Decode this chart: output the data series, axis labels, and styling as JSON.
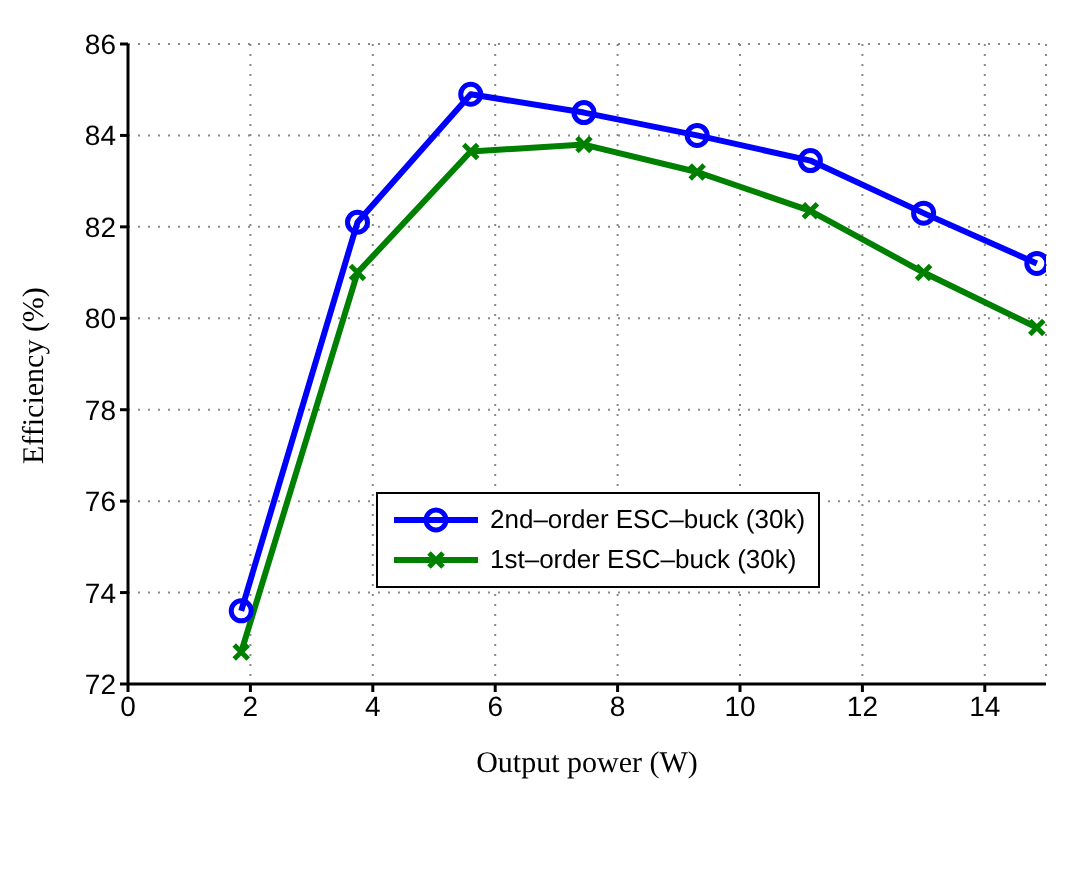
{
  "chart_data": {
    "type": "line",
    "xlabel": "Output power (W)",
    "ylabel": "Efficiency (%)",
    "x": [
      1.85,
      3.75,
      5.6,
      7.45,
      9.3,
      11.15,
      13.0,
      14.85
    ],
    "series": [
      {
        "name": "2nd–order ESC–buck (30k)",
        "color": "#0000ff",
        "marker": "circle",
        "values": [
          73.6,
          82.1,
          84.9,
          84.5,
          84.0,
          83.45,
          82.3,
          81.2
        ]
      },
      {
        "name": "1st–order ESC–buck (30k)",
        "color": "#008000",
        "marker": "cross",
        "values": [
          72.7,
          81.0,
          83.65,
          83.8,
          83.2,
          82.35,
          81.0,
          79.8
        ]
      }
    ],
    "xlim": [
      0,
      15
    ],
    "xticks": [
      0,
      2,
      4,
      6,
      8,
      10,
      12,
      14
    ],
    "ylim": [
      72,
      86
    ],
    "yticks": [
      72,
      74,
      76,
      78,
      80,
      82,
      84,
      86
    ],
    "grid": true,
    "legend": "bottom",
    "line_style": "solid"
  }
}
